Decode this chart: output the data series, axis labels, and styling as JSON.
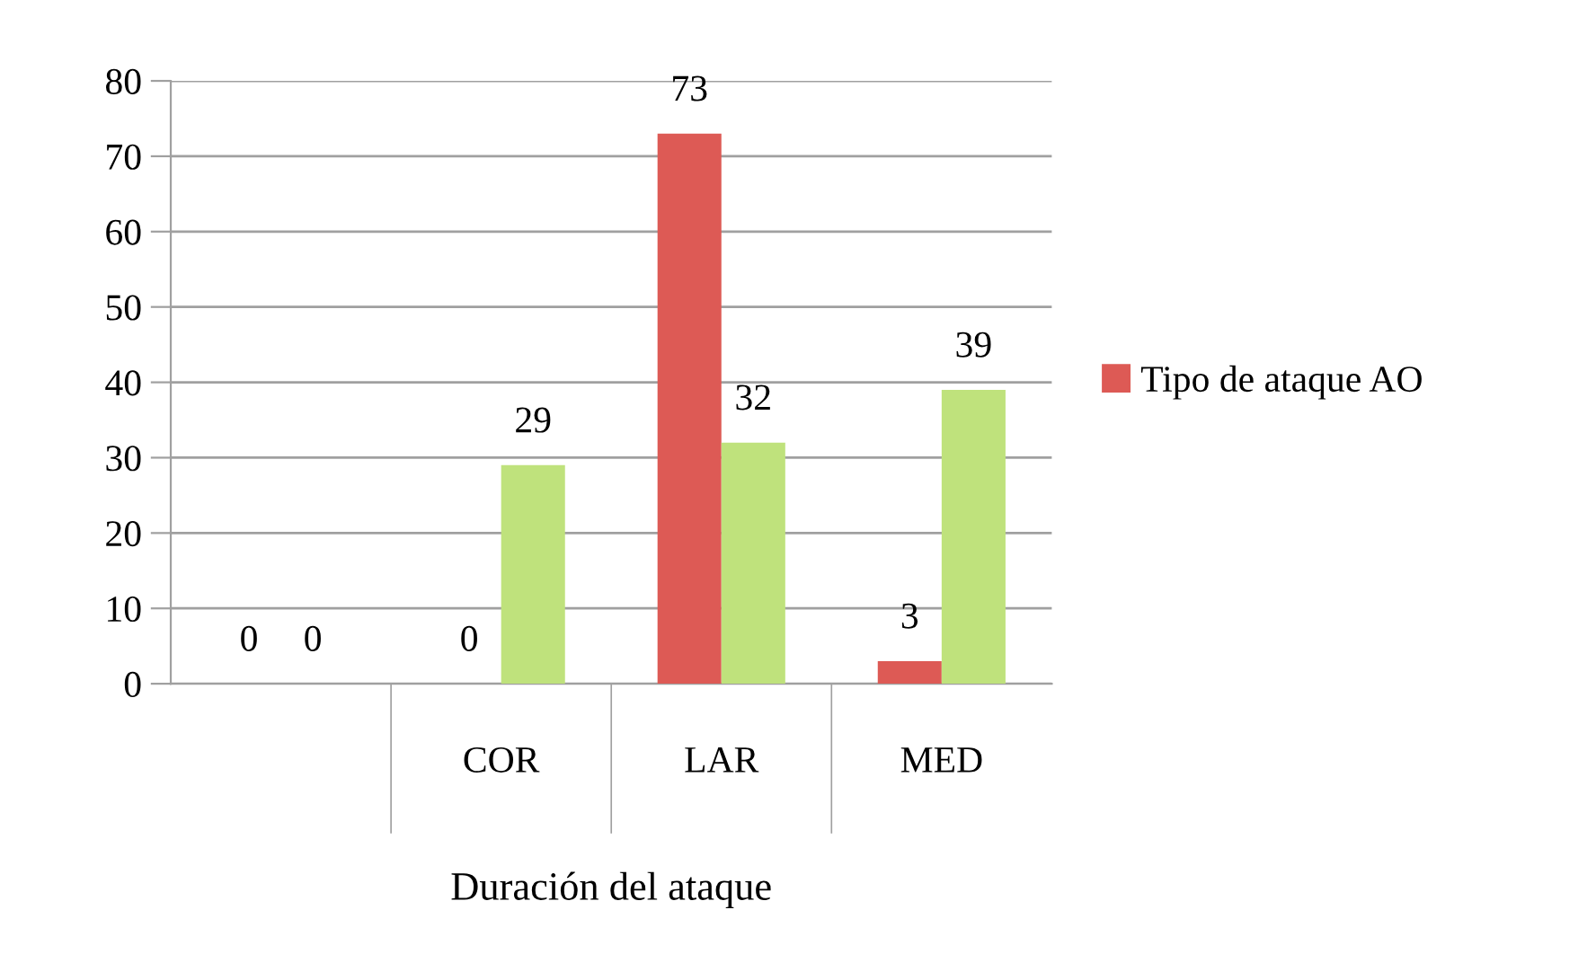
{
  "chart_data": {
    "type": "bar",
    "xlabel": "Duración del ataque",
    "categories": [
      null,
      "COR",
      "LAR",
      "MED"
    ],
    "series": [
      {
        "name": "Tipo de ataque AO",
        "color": "#dd5a55",
        "values": [
          0,
          0,
          73,
          3
        ]
      },
      {
        "color": "#bfe27c",
        "values": [
          0,
          29,
          32,
          39
        ]
      }
    ],
    "ylim": [
      0,
      80
    ],
    "yticks": [
      0,
      10,
      20,
      30,
      40,
      50,
      60,
      70,
      80
    ],
    "grid": "y",
    "legend": "right",
    "data_labels": true
  }
}
